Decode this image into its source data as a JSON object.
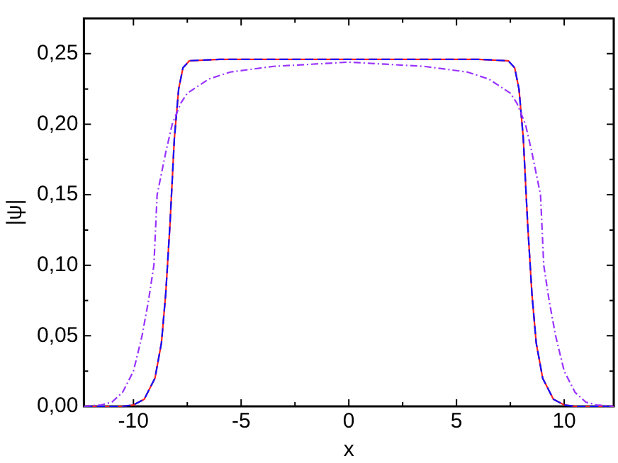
{
  "chart_data": {
    "type": "line",
    "xlabel": "x",
    "ylabel": "|ψ|",
    "xlim": [
      -12.3,
      12.3
    ],
    "ylim": [
      0,
      0.275
    ],
    "xticks": [
      -10,
      {
        "value": -7.5,
        "label": null
      },
      -5,
      {
        "value": -2.5,
        "label": null
      },
      0,
      {
        "value": 2.5,
        "label": null
      },
      5,
      {
        "value": 7.5,
        "label": null
      },
      10
    ],
    "yticks": [
      {
        "value": 0,
        "label": "0,00"
      },
      {
        "value": 0.025,
        "label": null
      },
      {
        "value": 0.05,
        "label": "0,05"
      },
      {
        "value": 0.075,
        "label": null
      },
      {
        "value": 0.1,
        "label": "0,10"
      },
      {
        "value": 0.125,
        "label": null
      },
      {
        "value": 0.15,
        "label": "0,15"
      },
      {
        "value": 0.175,
        "label": null
      },
      {
        "value": 0.2,
        "label": "0,20"
      },
      {
        "value": 0.225,
        "label": null
      },
      {
        "value": 0.25,
        "label": "0,25"
      }
    ],
    "grid": false,
    "legend": false,
    "marker": "none",
    "series": [
      {
        "color": "#ff2020",
        "line_style": "solid",
        "x": [
          -12.3,
          -10.5,
          -10,
          -9.5,
          -9,
          -8.7,
          -8.5,
          -8.3,
          -8.1,
          -7.9,
          -7.7,
          -7.4,
          -6,
          0,
          6,
          7.4,
          7.7,
          7.9,
          8.1,
          8.3,
          8.5,
          8.7,
          9,
          9.5,
          10,
          10.5,
          12.3
        ],
        "values": [
          0,
          0,
          0.001,
          0.005,
          0.02,
          0.045,
          0.08,
          0.13,
          0.19,
          0.225,
          0.24,
          0.245,
          0.246,
          0.246,
          0.246,
          0.245,
          0.24,
          0.225,
          0.19,
          0.13,
          0.08,
          0.045,
          0.02,
          0.005,
          0.001,
          0,
          0
        ]
      },
      {
        "color": "#1010ff",
        "line_style": "dashed",
        "x": [
          -12.3,
          -10.5,
          -10,
          -9.5,
          -9,
          -8.7,
          -8.5,
          -8.3,
          -8.1,
          -7.9,
          -7.7,
          -7.4,
          -6,
          0,
          6,
          7.4,
          7.7,
          7.9,
          8.1,
          8.3,
          8.5,
          8.7,
          9,
          9.5,
          10,
          10.5,
          12.3
        ],
        "values": [
          0,
          0,
          0.001,
          0.005,
          0.02,
          0.045,
          0.08,
          0.13,
          0.19,
          0.225,
          0.24,
          0.245,
          0.246,
          0.246,
          0.246,
          0.245,
          0.24,
          0.225,
          0.19,
          0.13,
          0.08,
          0.045,
          0.02,
          0.005,
          0.001,
          0,
          0
        ]
      },
      {
        "color": "#9933ff",
        "line_style": "dashdot",
        "x": [
          -12.3,
          -11.5,
          -11,
          -10.5,
          -10,
          -9.6,
          -9.3,
          -9.05,
          -8.9,
          -8.5,
          -8.2,
          -7.8,
          -7.5,
          -6.5,
          -5.5,
          -3.5,
          0,
          3.5,
          5.5,
          6.5,
          7.5,
          7.8,
          8.2,
          8.5,
          8.9,
          9.05,
          9.3,
          9.6,
          10,
          10.5,
          11,
          11.5,
          12.3
        ],
        "values": [
          0,
          0.001,
          0.003,
          0.01,
          0.025,
          0.05,
          0.075,
          0.1,
          0.15,
          0.18,
          0.2,
          0.215,
          0.222,
          0.232,
          0.237,
          0.241,
          0.244,
          0.241,
          0.237,
          0.232,
          0.222,
          0.215,
          0.2,
          0.18,
          0.15,
          0.1,
          0.075,
          0.05,
          0.025,
          0.01,
          0.003,
          0.001,
          0
        ]
      }
    ]
  }
}
